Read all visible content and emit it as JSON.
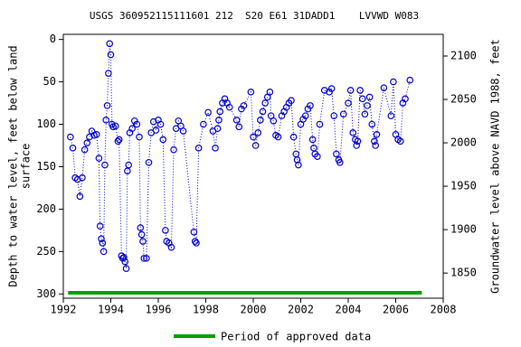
{
  "chart_data": {
    "type": "scatter",
    "title": "USGS 360952115111601 212  S20 E61 31DADD1    LVVWD W083",
    "y_label": [
      "Depth to water level, feet below land",
      "surface"
    ],
    "y2_label": "Groundwater level above NAVD 1988, feet",
    "xlim": [
      1992,
      2008
    ],
    "xticks": [
      1992,
      1994,
      1996,
      1998,
      2000,
      2002,
      2004,
      2006,
      2008
    ],
    "ylim": [
      305,
      -6
    ],
    "yticks": [
      0,
      50,
      100,
      150,
      200,
      250,
      300
    ],
    "y2lim": [
      1821,
      2125
    ],
    "y2ticks": [
      1850,
      1900,
      1950,
      2000,
      2050,
      2100
    ],
    "series": [
      {
        "name": "Depth to water level",
        "color": "#0000cc",
        "x": [
          1992.3,
          1992.4,
          1992.5,
          1992.6,
          1992.7,
          1992.8,
          1992.9,
          1993.0,
          1993.1,
          1993.2,
          1993.3,
          1993.4,
          1993.5,
          1993.55,
          1993.6,
          1993.65,
          1993.7,
          1993.75,
          1993.8,
          1993.85,
          1993.9,
          1993.95,
          1994.0,
          1994.05,
          1994.1,
          1994.2,
          1994.3,
          1994.35,
          1994.45,
          1994.5,
          1994.55,
          1994.6,
          1994.65,
          1994.7,
          1994.75,
          1994.8,
          1994.9,
          1995.0,
          1995.1,
          1995.2,
          1995.25,
          1995.3,
          1995.35,
          1995.4,
          1995.5,
          1995.6,
          1995.7,
          1995.8,
          1995.9,
          1996.0,
          1996.1,
          1996.2,
          1996.3,
          1996.35,
          1996.45,
          1996.55,
          1996.65,
          1996.75,
          1996.85,
          1996.95,
          1997.05,
          1997.5,
          1997.55,
          1997.6,
          1997.7,
          1997.9,
          1998.1,
          1998.3,
          1998.4,
          1998.5,
          1998.55,
          1998.6,
          1998.7,
          1998.8,
          1998.9,
          1999.0,
          1999.3,
          1999.4,
          1999.5,
          1999.6,
          1999.9,
          2000.0,
          2000.1,
          2000.2,
          2000.3,
          2000.4,
          2000.5,
          2000.6,
          2000.7,
          2000.75,
          2000.85,
          2000.95,
          2001.05,
          2001.2,
          2001.3,
          2001.4,
          2001.5,
          2001.6,
          2001.7,
          2001.8,
          2001.85,
          2001.9,
          2002.0,
          2002.1,
          2002.2,
          2002.3,
          2002.4,
          2002.5,
          2002.55,
          2002.6,
          2002.7,
          2002.8,
          2003.0,
          2003.2,
          2003.3,
          2003.4,
          2003.5,
          2003.6,
          2003.65,
          2003.8,
          2004.0,
          2004.1,
          2004.2,
          2004.3,
          2004.35,
          2004.4,
          2004.5,
          2004.6,
          2004.7,
          2004.8,
          2004.9,
          2005.0,
          2005.1,
          2005.15,
          2005.2,
          2005.5,
          2005.8,
          2005.9,
          2006.0,
          2006.1,
          2006.2,
          2006.3,
          2006.4,
          2006.6
        ],
        "values": [
          115,
          128,
          163,
          165,
          185,
          163,
          130,
          122,
          115,
          108,
          113,
          112,
          140,
          220,
          235,
          240,
          250,
          148,
          95,
          78,
          40,
          5,
          18,
          100,
          103,
          102,
          120,
          118,
          255,
          258,
          257,
          262,
          270,
          155,
          148,
          110,
          105,
          96,
          100,
          115,
          222,
          230,
          238,
          258,
          258,
          145,
          110,
          97,
          107,
          95,
          100,
          118,
          225,
          238,
          240,
          245,
          130,
          105,
          96,
          102,
          108,
          227,
          238,
          240,
          128,
          100,
          86,
          108,
          128,
          105,
          95,
          85,
          75,
          70,
          75,
          80,
          95,
          103,
          82,
          78,
          62,
          115,
          125,
          110,
          95,
          85,
          75,
          68,
          62,
          90,
          96,
          113,
          115,
          90,
          85,
          80,
          75,
          72,
          115,
          135,
          142,
          148,
          100,
          94,
          90,
          82,
          78,
          118,
          128,
          135,
          138,
          100,
          60,
          62,
          58,
          90,
          135,
          142,
          145,
          88,
          75,
          60,
          110,
          118,
          125,
          120,
          60,
          70,
          88,
          78,
          68,
          100,
          120,
          125,
          112,
          57,
          90,
          50,
          112,
          118,
          120,
          75,
          70,
          48
        ]
      }
    ],
    "approved_periods": [
      {
        "start": 1992.2,
        "end": 2007.1,
        "color": "#00a000"
      }
    ],
    "legend": "Period of approved data"
  }
}
